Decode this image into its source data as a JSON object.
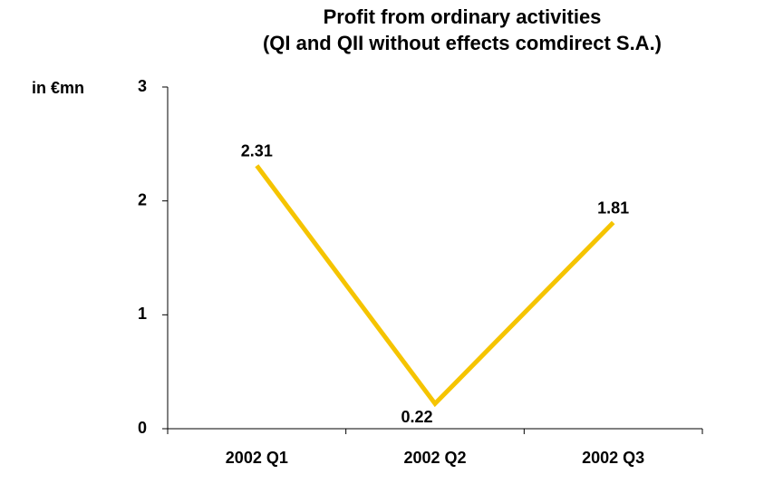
{
  "chart_data": {
    "type": "line",
    "title": "Profit from ordinary activities",
    "subtitle": "(QI and QII without effects comdirect S.A.)",
    "y_label": "in €mn",
    "categories": [
      "2002 Q1",
      "2002 Q2",
      "2002 Q3"
    ],
    "values": [
      2.31,
      0.22,
      1.81
    ],
    "color": "#f5c400",
    "ylim": [
      0,
      3
    ],
    "yticks": [
      0,
      1,
      2,
      3
    ],
    "grid": false
  }
}
